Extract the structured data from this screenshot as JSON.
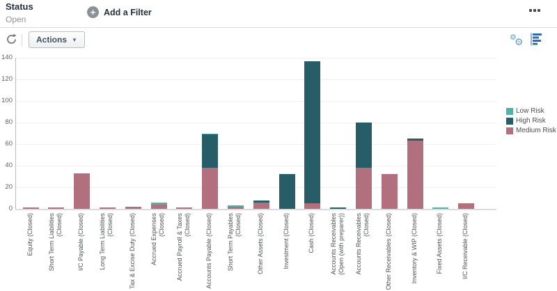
{
  "header": {
    "title": "Status",
    "status": "Open",
    "add_filter_label": "Add a Filter",
    "plus_icon": "plus-circle",
    "overflow_icon": "ellipsis-menu"
  },
  "toolbar": {
    "refresh_icon": "refresh-circular-arrow",
    "actions_label": "Actions",
    "caret_icon": "caret-down",
    "settings_icon": "gears",
    "chart_type_icon": "horizontal-bar-chart"
  },
  "chart_data": {
    "type": "bar",
    "stacked": true,
    "title": "",
    "xlabel": "",
    "ylabel": "",
    "ylim": [
      0,
      140
    ],
    "yticks": [
      0,
      20,
      40,
      60,
      80,
      100,
      120,
      140
    ],
    "grid": true,
    "legend_position": "right",
    "stack_order_bottom_to_top": [
      "Medium Risk",
      "High Risk",
      "Low Risk"
    ],
    "categories": [
      "Equity (Closed)",
      "Short Term Liabilities (Closed)",
      "I/C Payable (Closed)",
      "Long Term Liabilities (Closed)",
      "Tax & Excise Duty (Closed)",
      "Accrued Expenses (Closed)",
      "Accrued Payroll & Taxes (Closed)",
      "Accounts Payable (Closed)",
      "Short Term Payables (Closed)",
      "Other Assets (Closed)",
      "Investment (Closed)",
      "Cash (Closed)",
      "Accounts Receivables (Open (with preparer))",
      "Accounts Receivables (Closed)",
      "Other Receivables (Closed)",
      "Inventory & WIP (Closed)",
      "Fixed Assets (Closed)",
      "I/C Receivable (Closed)"
    ],
    "category_label_lines": [
      [
        "Equity (Closed)"
      ],
      [
        "Short Term Liabilities",
        "(Closed)"
      ],
      [
        "I/C Payable (Closed)"
      ],
      [
        "Long Term Liabilities",
        "(Closed)"
      ],
      [
        "Tax & Excise Duty (Closed)"
      ],
      [
        "Accrued Expenses",
        "(Closed)"
      ],
      [
        "Accrued Payroll & Taxes",
        "(Closed)"
      ],
      [
        "Accounts Payable (Closed)"
      ],
      [
        "Short Term Payables",
        "(Closed)"
      ],
      [
        "Other Assets (Closed)"
      ],
      [
        "Investment (Closed)"
      ],
      [
        "Cash (Closed)"
      ],
      [
        "Accounts Receivables",
        "(Open (with preparer))"
      ],
      [
        "Accounts Receivables",
        "(Closed)"
      ],
      [
        "Other Receivables (Closed)"
      ],
      [
        "Inventory & WIP (Closed)"
      ],
      [
        "Fixed Assets (Closed)"
      ],
      [
        "I/C Receivable (Closed)"
      ]
    ],
    "series": [
      {
        "name": "Low Risk",
        "color": "#4eb3aa",
        "values": [
          0,
          0,
          0,
          0,
          0,
          2,
          0,
          1,
          1,
          0,
          0,
          0,
          0,
          0,
          0,
          0,
          1,
          0
        ]
      },
      {
        "name": "High Risk",
        "color": "#275d66",
        "values": [
          0,
          0,
          0,
          0,
          0,
          0,
          0,
          31,
          0,
          2,
          32,
          132,
          1,
          42,
          0,
          2,
          0,
          0
        ]
      },
      {
        "name": "Medium Risk",
        "color": "#b26f7e",
        "values": [
          1,
          1,
          33,
          1,
          2,
          4,
          1,
          38,
          2,
          6,
          0,
          5,
          0,
          38,
          32,
          63,
          0,
          5
        ]
      }
    ]
  }
}
